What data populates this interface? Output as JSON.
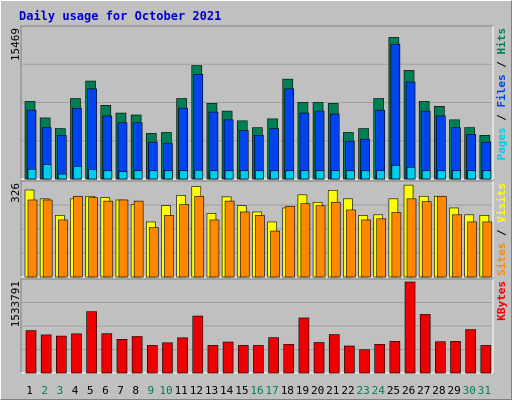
{
  "title": "Daily usage for October 2021",
  "colors": {
    "frame_bg": "#c0c0c0",
    "panel_bg": "#c0c0c0",
    "title": "#0000cc",
    "pages": "#00ccee",
    "files": "#0044ee",
    "hits": "#007f55",
    "sites": "#ff8800",
    "visits": "#ffff00",
    "kbytes": "#ee0000",
    "weekday_label": "#000000",
    "weekend_label": "#007f55"
  },
  "chart_data": [
    {
      "type": "bar",
      "panel": "hits-files-pages",
      "ylabel_max": "15469",
      "ylim": [
        0,
        15469
      ],
      "categories": [
        "1",
        "2",
        "3",
        "4",
        "5",
        "6",
        "7",
        "8",
        "9",
        "10",
        "11",
        "12",
        "13",
        "14",
        "15",
        "16",
        "17",
        "18",
        "19",
        "20",
        "21",
        "22",
        "23",
        "24",
        "25",
        "26",
        "27",
        "28",
        "29",
        "30",
        "31"
      ],
      "weekend_days": [
        "2",
        "3",
        "9",
        "10",
        "16",
        "17",
        "23",
        "24",
        "30",
        "31"
      ],
      "legend": [
        "Pages",
        "Files",
        "Hits"
      ],
      "series": [
        {
          "name": "Hits",
          "values": [
            8000,
            6300,
            5200,
            8300,
            10100,
            7600,
            6800,
            6600,
            4700,
            4800,
            8300,
            11700,
            7800,
            7000,
            6000,
            5300,
            6200,
            10300,
            7900,
            7900,
            7800,
            4800,
            5200,
            8300,
            14600,
            11200,
            8000,
            7500,
            6100,
            5300,
            4500
          ]
        },
        {
          "name": "Files",
          "values": [
            7100,
            5300,
            4500,
            7300,
            9300,
            6500,
            5800,
            5800,
            3800,
            3700,
            7300,
            10800,
            6900,
            6100,
            5000,
            4500,
            5200,
            9300,
            6800,
            7000,
            6700,
            3900,
            4100,
            7100,
            13900,
            10000,
            7000,
            6500,
            5300,
            4600,
            3800
          ]
        },
        {
          "name": "Pages",
          "values": [
            1000,
            1500,
            500,
            1300,
            1000,
            850,
            750,
            850,
            850,
            850,
            850,
            900,
            850,
            850,
            850,
            850,
            850,
            850,
            850,
            850,
            850,
            850,
            850,
            850,
            1400,
            1200,
            850,
            850,
            850,
            850,
            850
          ]
        }
      ]
    },
    {
      "type": "bar",
      "panel": "visits-sites",
      "ylabel_max": "326",
      "ylim": [
        0,
        326
      ],
      "categories": [
        "1",
        "2",
        "3",
        "4",
        "5",
        "6",
        "7",
        "8",
        "9",
        "10",
        "11",
        "12",
        "13",
        "14",
        "15",
        "16",
        "17",
        "18",
        "19",
        "20",
        "21",
        "22",
        "23",
        "24",
        "25",
        "26",
        "27",
        "28",
        "29",
        "30",
        "31"
      ],
      "legend": [
        "Sites",
        "Visits"
      ],
      "series": [
        {
          "name": "Visits",
          "values": [
            305,
            274,
            216,
            274,
            283,
            278,
            270,
            254,
            193,
            250,
            286,
            317,
            223,
            281,
            250,
            228,
            193,
            242,
            288,
            262,
            304,
            274,
            216,
            218,
            274,
            322,
            283,
            283,
            242,
            218,
            216
          ]
        },
        {
          "name": "Sites",
          "values": [
            270,
            270,
            200,
            283,
            278,
            266,
            270,
            266,
            173,
            216,
            254,
            283,
            200,
            266,
            228,
            216,
            161,
            248,
            257,
            250,
            262,
            235,
            200,
            204,
            226,
            274,
            264,
            283,
            218,
            193,
            193
          ]
        }
      ]
    },
    {
      "type": "bar",
      "panel": "kbytes",
      "ylabel_max": "1533791",
      "ylim": [
        0,
        1533791
      ],
      "categories": [
        "1",
        "2",
        "3",
        "4",
        "5",
        "6",
        "7",
        "8",
        "9",
        "10",
        "11",
        "12",
        "13",
        "14",
        "15",
        "16",
        "17",
        "18",
        "19",
        "20",
        "21",
        "22",
        "23",
        "24",
        "25",
        "26",
        "27",
        "28",
        "29",
        "30",
        "31"
      ],
      "legend": [
        "KBytes"
      ],
      "series": [
        {
          "name": "KBytes",
          "values": [
            715000,
            642000,
            622000,
            660000,
            1034000,
            663000,
            568000,
            615000,
            465000,
            509000,
            593000,
            960000,
            465000,
            522000,
            465000,
            465000,
            596000,
            484000,
            928000,
            514000,
            648000,
            455000,
            393000,
            484000,
            533000,
            1533791,
            987000,
            527000,
            533000,
            732000,
            465000
          ]
        }
      ]
    }
  ]
}
